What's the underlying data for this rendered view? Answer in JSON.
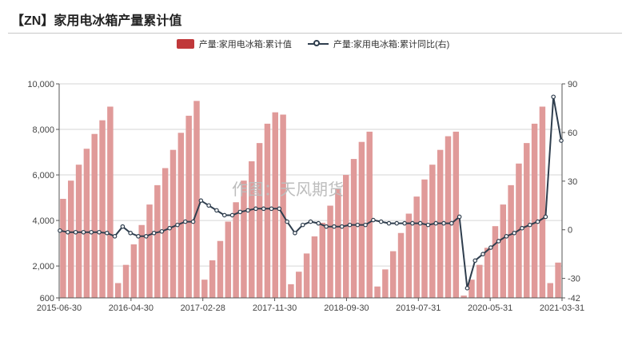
{
  "header": {
    "title": "【ZN】家用电冰箱产量累计值"
  },
  "watermark": "作图：天风期货",
  "colors": {
    "bar": "#e09a99",
    "legend_bar": "#c0383a",
    "line": "#2f3e4e",
    "grid": "#d6d6d6"
  },
  "legend": {
    "bar_label": "产量:家用电冰箱:累计值",
    "line_label": "产量:家用电冰箱:累计同比(右)",
    "line_icon": "circle-marker-line-icon"
  },
  "chart_data": {
    "type": "bar",
    "title": "【ZN】家用电冰箱产量累计值",
    "x_tick_labels": [
      "2015-06-30",
      "2016-04-30",
      "2017-02-28",
      "2017-11-30",
      "2018-09-30",
      "2019-07-31",
      "2020-05-31",
      "2021-03-31"
    ],
    "y_left": {
      "min": 600,
      "max": 10000,
      "ticks": [
        600,
        2000,
        4000,
        6000,
        8000,
        10000
      ],
      "tick_labels": [
        "600",
        "2,000",
        "4,000",
        "6,000",
        "8,000",
        "10,000"
      ]
    },
    "y_right": {
      "min": -42,
      "max": 90,
      "ticks": [
        -42,
        -30,
        0,
        30,
        60,
        90
      ],
      "tick_labels": [
        "-42",
        "-30",
        "0",
        "30",
        "60",
        "90"
      ]
    },
    "grid": true,
    "legend_position": "top",
    "series": [
      {
        "name": "产量:家用电冰箱:累计值",
        "type": "bar",
        "axis": "left",
        "values": [
          4950,
          5750,
          6450,
          7150,
          7800,
          8400,
          9000,
          1250,
          2050,
          2950,
          3800,
          4700,
          5550,
          6300,
          7100,
          7850,
          8600,
          9250,
          1400,
          2250,
          3100,
          3950,
          4800,
          5750,
          6600,
          7400,
          8250,
          8750,
          8650,
          1200,
          1750,
          2550,
          3300,
          3900,
          4650,
          5400,
          6000,
          6700,
          7450,
          7900,
          1100,
          1850,
          2650,
          3450,
          4300,
          5050,
          5800,
          6450,
          7100,
          7700,
          7900,
          700,
          1400,
          2050,
          2800,
          3750,
          4700,
          5550,
          6500,
          7400,
          8250,
          9000,
          1250,
          2150
        ]
      },
      {
        "name": "产量:家用电冰箱:累计同比(右)",
        "type": "line",
        "axis": "right",
        "values": [
          -0.5,
          -1.5,
          -1.5,
          -1.5,
          -1.5,
          -1.5,
          -2,
          -4,
          2,
          -2,
          -4,
          -4,
          -2,
          -1,
          1,
          3,
          5,
          5,
          18,
          15,
          12,
          9,
          9,
          11,
          12,
          13,
          13,
          13,
          13,
          5,
          -2,
          3,
          5,
          4,
          2,
          2,
          2,
          3,
          3,
          3,
          6,
          5,
          4,
          4,
          4,
          4,
          4,
          3,
          4,
          4,
          4,
          8,
          -36,
          -19,
          -15,
          -11,
          -7,
          -4,
          -2,
          1,
          3,
          5,
          8,
          82,
          55
        ]
      }
    ]
  }
}
